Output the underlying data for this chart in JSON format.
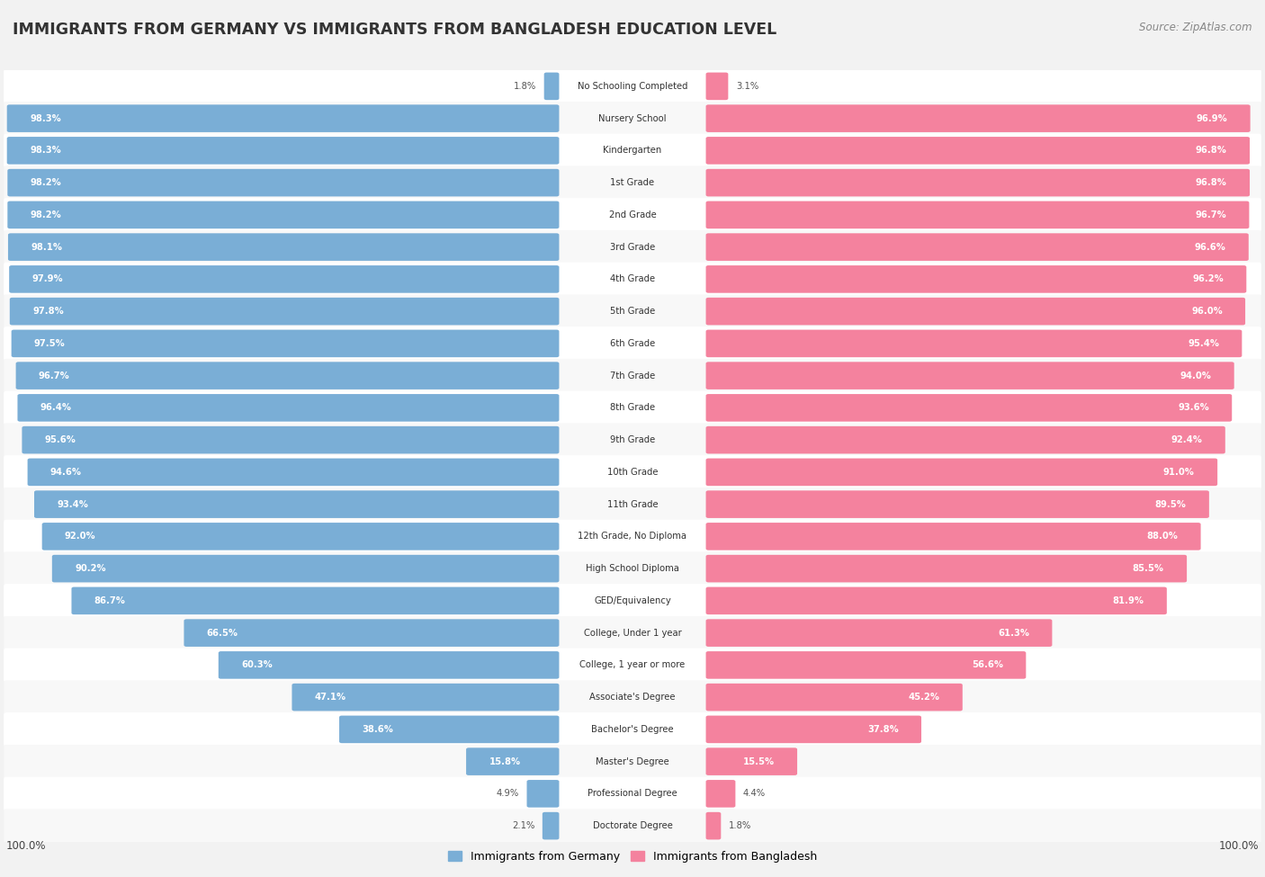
{
  "title": "IMMIGRANTS FROM GERMANY VS IMMIGRANTS FROM BANGLADESH EDUCATION LEVEL",
  "source": "Source: ZipAtlas.com",
  "categories": [
    "No Schooling Completed",
    "Nursery School",
    "Kindergarten",
    "1st Grade",
    "2nd Grade",
    "3rd Grade",
    "4th Grade",
    "5th Grade",
    "6th Grade",
    "7th Grade",
    "8th Grade",
    "9th Grade",
    "10th Grade",
    "11th Grade",
    "12th Grade, No Diploma",
    "High School Diploma",
    "GED/Equivalency",
    "College, Under 1 year",
    "College, 1 year or more",
    "Associate's Degree",
    "Bachelor's Degree",
    "Master's Degree",
    "Professional Degree",
    "Doctorate Degree"
  ],
  "germany_values": [
    1.8,
    98.3,
    98.3,
    98.2,
    98.2,
    98.1,
    97.9,
    97.8,
    97.5,
    96.7,
    96.4,
    95.6,
    94.6,
    93.4,
    92.0,
    90.2,
    86.7,
    66.5,
    60.3,
    47.1,
    38.6,
    15.8,
    4.9,
    2.1
  ],
  "bangladesh_values": [
    3.1,
    96.9,
    96.8,
    96.8,
    96.7,
    96.6,
    96.2,
    96.0,
    95.4,
    94.0,
    93.6,
    92.4,
    91.0,
    89.5,
    88.0,
    85.5,
    81.9,
    61.3,
    56.6,
    45.2,
    37.8,
    15.5,
    4.4,
    1.8
  ],
  "germany_color": "#7aaed6",
  "bangladesh_color": "#f4829e",
  "background_color": "#f2f2f2",
  "legend_germany": "Immigrants from Germany",
  "legend_bangladesh": "Immigrants from Bangladesh"
}
